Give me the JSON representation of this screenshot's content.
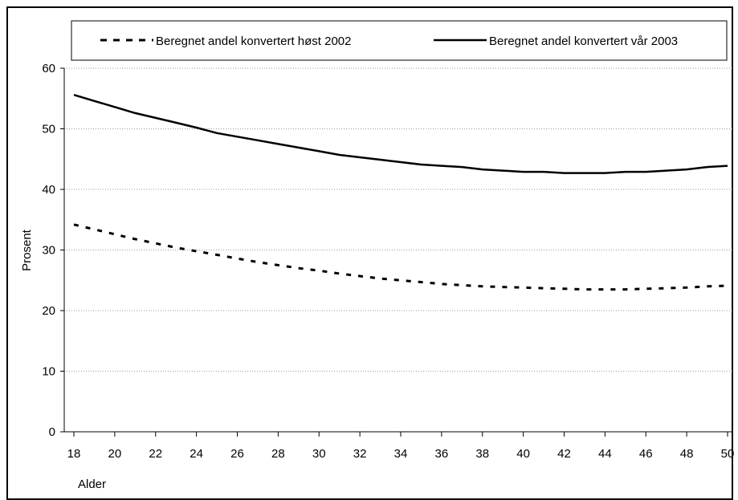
{
  "chart_data": {
    "type": "line",
    "title": "",
    "xlabel": "Alder",
    "ylabel": "Prosent",
    "xlim": [
      18,
      50
    ],
    "ylim": [
      0,
      60
    ],
    "x_ticks": [
      18,
      20,
      22,
      24,
      26,
      28,
      30,
      32,
      34,
      36,
      38,
      40,
      42,
      44,
      46,
      48,
      50
    ],
    "y_ticks": [
      0,
      10,
      20,
      30,
      40,
      50,
      60
    ],
    "grid": "horizontal dotted",
    "legend_position": "top",
    "x": [
      18,
      19,
      20,
      21,
      22,
      23,
      24,
      25,
      26,
      27,
      28,
      29,
      30,
      31,
      32,
      33,
      34,
      35,
      36,
      37,
      38,
      39,
      40,
      41,
      42,
      43,
      44,
      45,
      46,
      47,
      48,
      49,
      50
    ],
    "series": [
      {
        "name": "Beregnet andel konvertert høst 2002",
        "style": "dashed",
        "color": "#000000",
        "values": [
          34.2,
          33.4,
          32.6,
          31.8,
          31.1,
          30.4,
          29.8,
          29.2,
          28.6,
          28.0,
          27.5,
          27.0,
          26.6,
          26.1,
          25.7,
          25.3,
          25.0,
          24.7,
          24.4,
          24.2,
          24.0,
          23.9,
          23.8,
          23.7,
          23.6,
          23.5,
          23.5,
          23.5,
          23.6,
          23.7,
          23.8,
          24.0,
          24.1
        ]
      },
      {
        "name": "Beregnet andel konvertert vår 2003",
        "style": "solid",
        "color": "#000000",
        "values": [
          55.6,
          54.6,
          53.6,
          52.6,
          51.8,
          51.0,
          50.2,
          49.3,
          48.7,
          48.1,
          47.5,
          46.9,
          46.3,
          45.7,
          45.3,
          44.9,
          44.5,
          44.1,
          43.9,
          43.7,
          43.3,
          43.1,
          42.9,
          42.9,
          42.7,
          42.7,
          42.7,
          42.9,
          42.9,
          43.1,
          43.3,
          43.7,
          43.9
        ]
      }
    ]
  }
}
